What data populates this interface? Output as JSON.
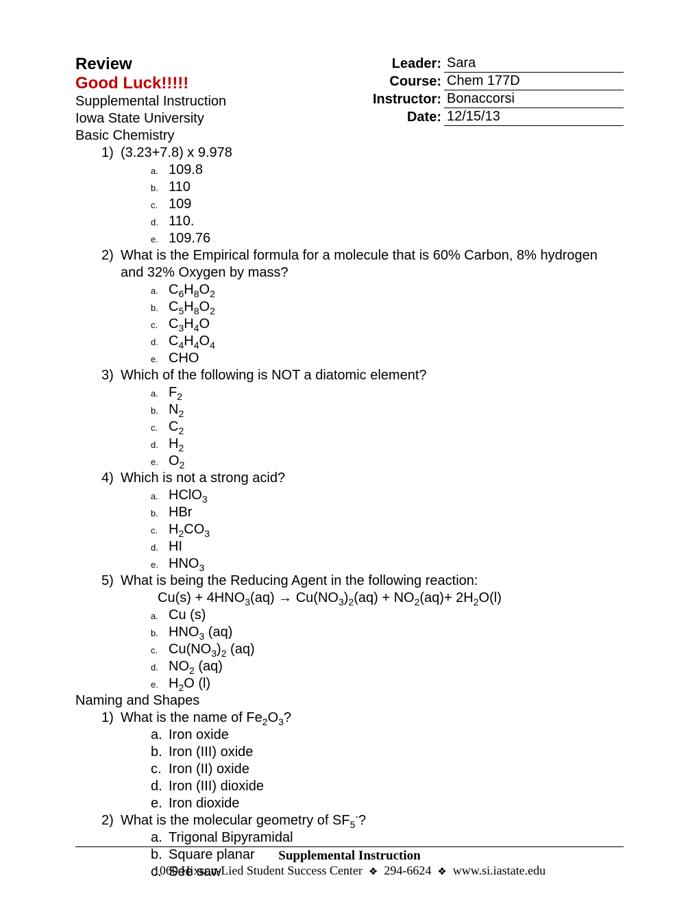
{
  "header": {
    "title1": "Review",
    "title2": "Good Luck!!!!!",
    "subtitle1": "Supplemental Instruction",
    "subtitle2": "Iowa State University",
    "info": [
      {
        "label": "Leader:",
        "value": "Sara"
      },
      {
        "label": "Course:",
        "value": "Chem 177D"
      },
      {
        "label": "Instructor:",
        "value": "Bonaccorsi"
      },
      {
        "label": "Date:",
        "value": "12/15/13"
      }
    ]
  },
  "sections": [
    {
      "title": "Basic Chemistry",
      "questions": [
        {
          "num": "1)",
          "text": "(3.23+7.8) x 9.978",
          "opt_style": "small",
          "options": [
            {
              "l": "a.",
              "t": "109.8"
            },
            {
              "l": "b.",
              "t": "110"
            },
            {
              "l": "c.",
              "t": "109"
            },
            {
              "l": "d.",
              "t": "110."
            },
            {
              "l": "e.",
              "t": "109.76"
            }
          ]
        },
        {
          "num": "2)",
          "text": "What is the Empirical formula for a molecule that is 60% Carbon, 8% hydrogen and 32% Oxygen by mass?",
          "opt_style": "small",
          "options": [
            {
              "l": "a.",
              "html": "C<sub>6</sub>H<sub>8</sub>O<sub>2</sub>"
            },
            {
              "l": "b.",
              "html": "C<sub>5</sub>H<sub>8</sub>O<sub>2</sub>"
            },
            {
              "l": "c.",
              "html": "C<sub>3</sub>H<sub>4</sub>O"
            },
            {
              "l": "d.",
              "html": "C<sub>4</sub>H<sub>4</sub>O<sub>4</sub>"
            },
            {
              "l": "e.",
              "t": "CHO"
            }
          ]
        },
        {
          "num": "3)",
          "text": "Which of the following is NOT a diatomic element?",
          "opt_style": "small",
          "options": [
            {
              "l": "a.",
              "html": "F<sub>2</sub>"
            },
            {
              "l": "b.",
              "html": "N<sub>2</sub>"
            },
            {
              "l": "c.",
              "html": "C<sub>2</sub>"
            },
            {
              "l": "d.",
              "html": "H<sub>2</sub>"
            },
            {
              "l": "e.",
              "html": "O<sub>2</sub>"
            }
          ]
        },
        {
          "num": "4)",
          "text": "Which is not a strong acid?",
          "opt_style": "small",
          "options": [
            {
              "l": "a.",
              "html": "HClO<sub>3</sub>"
            },
            {
              "l": "b.",
              "t": "HBr"
            },
            {
              "l": "c.",
              "html": "H<sub>2</sub>CO<sub>3</sub>"
            },
            {
              "l": "d.",
              "t": "HI"
            },
            {
              "l": "e.",
              "html": "HNO<sub>3</sub>"
            }
          ]
        },
        {
          "num": "5)",
          "text": "What is being the Reducing Agent in the following reaction:",
          "reaction_html": "Cu(s) + 4HNO<sub>3</sub>(aq) → Cu(NO<sub>3</sub>)<sub>2</sub>(aq) + NO<sub>2</sub>(aq)+ 2H<sub>2</sub>O(l)",
          "opt_style": "small",
          "options": [
            {
              "l": "a.",
              "t": "Cu (s)"
            },
            {
              "l": "b.",
              "html": "HNO<sub>3</sub> (aq)"
            },
            {
              "l": "c.",
              "html": "Cu(NO<sub>3</sub>)<sub>2</sub> (aq)"
            },
            {
              "l": "d.",
              "html": "NO<sub>2</sub> (aq)"
            },
            {
              "l": "e.",
              "html": "H<sub>2</sub>O (l)"
            }
          ]
        }
      ]
    },
    {
      "title": "Naming and Shapes",
      "questions": [
        {
          "num": "1)",
          "text_html": "What is the name of Fe<sub>2</sub>O<sub>3</sub>?",
          "opt_style": "normal",
          "options": [
            {
              "l": "a.",
              "t": "Iron oxide"
            },
            {
              "l": "b.",
              "t": "Iron (III) oxide"
            },
            {
              "l": "c.",
              "t": "Iron (II) oxide"
            },
            {
              "l": "d.",
              "t": "Iron (III) dioxide"
            },
            {
              "l": "e.",
              "t": "Iron dioxide"
            }
          ]
        },
        {
          "num": "2)",
          "text_html": "What is the molecular geometry of SF<sub>5</sub><sup>-</sup>?",
          "opt_style": "normal",
          "options": [
            {
              "l": "a.",
              "t": "Trigonal Bipyramidal"
            },
            {
              "l": "b.",
              "t": "Square planar"
            },
            {
              "l": "c.",
              "t": "See saw"
            }
          ]
        }
      ]
    }
  ],
  "footer": {
    "title": "Supplemental Instruction",
    "address": "1060 Hixson-Lied Student Success Center",
    "phone": "294-6624",
    "url": "www.si.iastate.edu"
  }
}
